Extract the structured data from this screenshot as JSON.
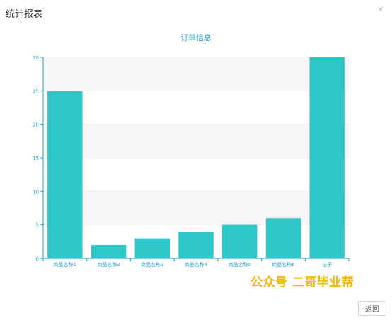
{
  "dialog": {
    "title": "统计报表",
    "close_icon": "close-icon",
    "close_glyph": "×",
    "back_label": "返回"
  },
  "watermark": {
    "text": "公众号 二哥毕业帮"
  },
  "colors": {
    "bar": "#2ec7c9",
    "axis": "#1aa3d1",
    "title": "#2a9fd6",
    "band": "#f7f7f7"
  },
  "chart_data": {
    "type": "bar",
    "title": "订单信息",
    "xlabel": "",
    "ylabel": "",
    "categories": [
      "商品名称1",
      "商品名称2",
      "商品名称3",
      "商品名称4",
      "商品名称5",
      "商品名称6",
      "桔子"
    ],
    "values": [
      25,
      2,
      3,
      4,
      5,
      6,
      30
    ],
    "ylim": [
      0,
      30
    ],
    "yticks": [
      0,
      5,
      10,
      15,
      20,
      25,
      30
    ],
    "grid": true,
    "legend": "none"
  }
}
